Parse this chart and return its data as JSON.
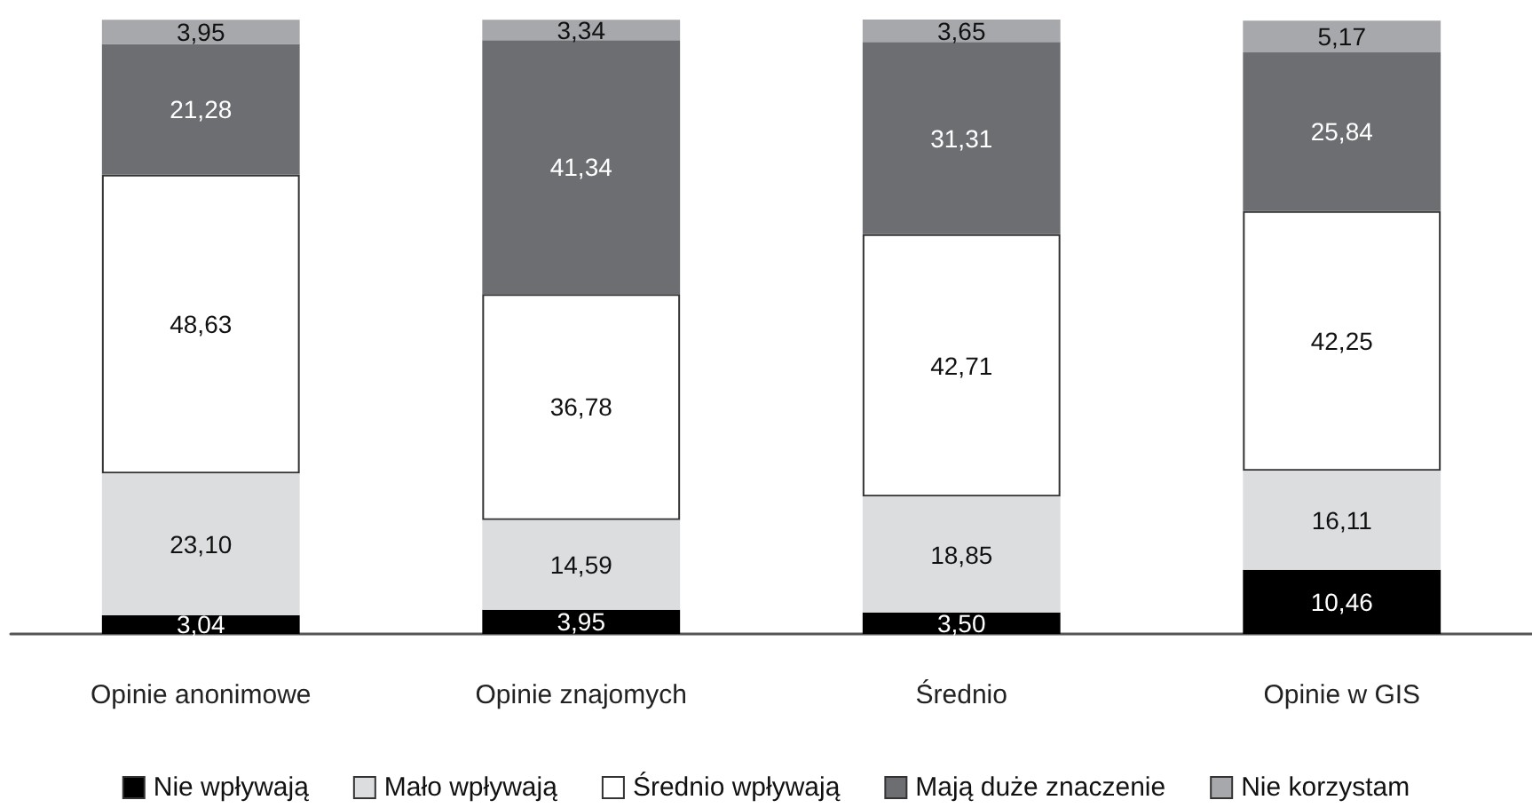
{
  "chart_data": {
    "type": "bar",
    "stacked": true,
    "categories": [
      "Opinie anonimowe",
      "Opinie znajomych",
      "Średnio",
      "Opinie w GIS"
    ],
    "series": [
      {
        "name": "Nie wpływają",
        "color": "#000000",
        "values": [
          3.04,
          3.95,
          3.5,
          10.46
        ],
        "value_labels": [
          "3,04",
          "3,95",
          "3,50",
          "10,46"
        ]
      },
      {
        "name": "Mało wpływają",
        "color": "#dcdddf",
        "values": [
          23.1,
          14.59,
          18.85,
          16.11
        ],
        "value_labels": [
          "23,10",
          "14,59",
          "18,85",
          "16,11"
        ]
      },
      {
        "name": "Średnio wpływają",
        "color": "#ffffff",
        "values": [
          48.63,
          36.78,
          42.71,
          42.25
        ],
        "value_labels": [
          "48,63",
          "36,78",
          "42,71",
          "42,25"
        ]
      },
      {
        "name": "Mają duże znaczenie",
        "color": "#6d6e71",
        "values": [
          21.28,
          41.34,
          31.31,
          25.84
        ],
        "value_labels": [
          "21,28",
          "41,34",
          "31,31",
          "25,84"
        ]
      },
      {
        "name": "Nie korzystam",
        "color": "#a7a8ab",
        "values": [
          3.95,
          3.34,
          3.65,
          5.17
        ],
        "value_labels": [
          "3,95",
          "3,34",
          "3,65",
          "5,17"
        ]
      }
    ],
    "legend": "bottom",
    "grid": false
  }
}
